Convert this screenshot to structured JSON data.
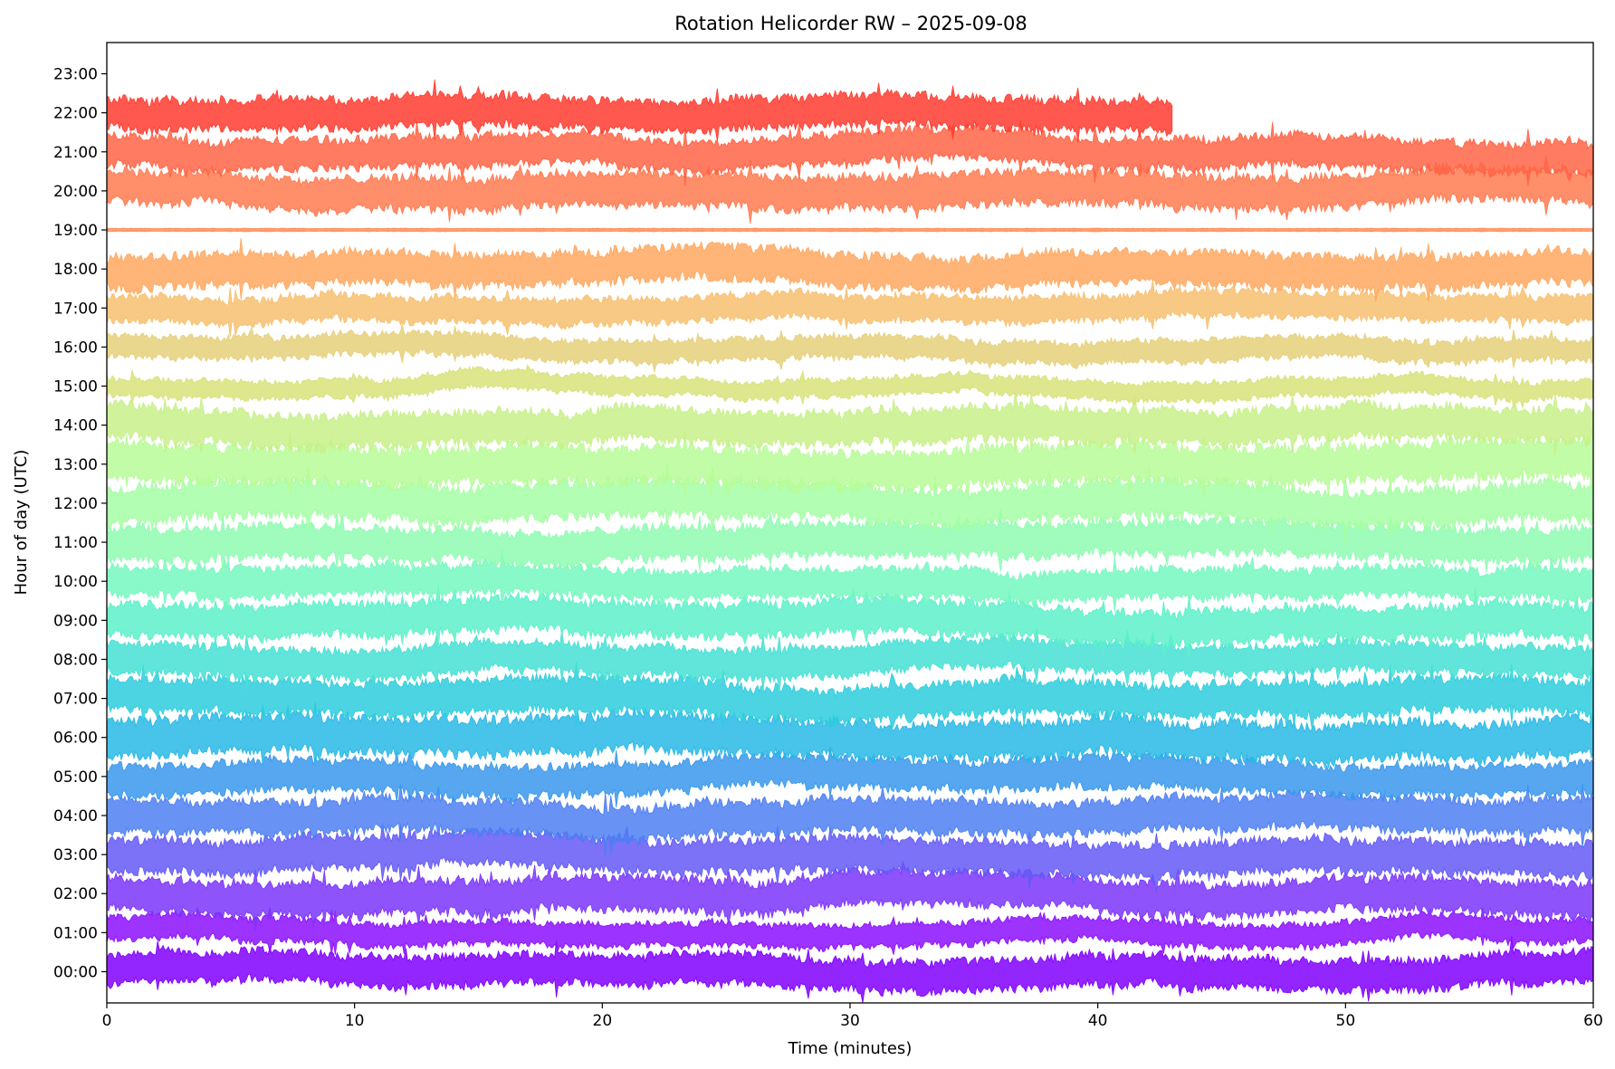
{
  "chart_data": {
    "type": "line",
    "title": "Rotation Helicorder RW – 2025-09-08",
    "xlabel": "Time (minutes)",
    "ylabel": "Hour of day (UTC)",
    "xlim": [
      0,
      60
    ],
    "ylim": [
      -0.8,
      23.8
    ],
    "x_ticks": [
      0,
      10,
      20,
      30,
      40,
      50,
      60
    ],
    "x_tick_labels": [
      "0",
      "10",
      "20",
      "30",
      "40",
      "50",
      "60"
    ],
    "y_ticks": [
      0,
      1,
      2,
      3,
      4,
      5,
      6,
      7,
      8,
      9,
      10,
      11,
      12,
      13,
      14,
      15,
      16,
      17,
      18,
      19,
      20,
      21,
      22,
      23
    ],
    "y_tick_labels": [
      "00:00",
      "01:00",
      "02:00",
      "03:00",
      "04:00",
      "05:00",
      "06:00",
      "07:00",
      "08:00",
      "09:00",
      "10:00",
      "11:00",
      "12:00",
      "13:00",
      "14:00",
      "15:00",
      "16:00",
      "17:00",
      "18:00",
      "19:00",
      "20:00",
      "21:00",
      "22:00",
      "23:00"
    ],
    "grid": false,
    "colormap": "rainbow",
    "series": [
      {
        "hour": 0,
        "color": "#8000ff",
        "amplitude": 0.42
      },
      {
        "hour": 1,
        "color": "#8b0ffe",
        "amplitude": 0.32
      },
      {
        "hour": 2,
        "color": "#7b35fb",
        "amplitude": 0.45
      },
      {
        "hour": 3,
        "color": "#6459f7",
        "amplitude": 0.45
      },
      {
        "hour": 4,
        "color": "#4d7ff2",
        "amplitude": 0.45
      },
      {
        "hour": 5,
        "color": "#3898ec",
        "amplitude": 0.42
      },
      {
        "hour": 6,
        "color": "#28b8e5",
        "amplitude": 0.5
      },
      {
        "hour": 7,
        "color": "#2ecddd",
        "amplitude": 0.45
      },
      {
        "hour": 8,
        "color": "#45e0d4",
        "amplitude": 0.4
      },
      {
        "hour": 9,
        "color": "#5df0c9",
        "amplitude": 0.45
      },
      {
        "hour": 10,
        "color": "#76f8bf",
        "amplitude": 0.4
      },
      {
        "hour": 11,
        "color": "#8efcb2",
        "amplitude": 0.45
      },
      {
        "hour": 12,
        "color": "#a4fea5",
        "amplitude": 0.5
      },
      {
        "hour": 13,
        "color": "#b8fb98",
        "amplitude": 0.5
      },
      {
        "hour": 14,
        "color": "#c8f08a",
        "amplitude": 0.45
      },
      {
        "hour": 15,
        "color": "#d8e27a",
        "amplitude": 0.25
      },
      {
        "hour": 16,
        "color": "#e6d07a",
        "amplitude": 0.3
      },
      {
        "hour": 17,
        "color": "#f7c070",
        "amplitude": 0.35
      },
      {
        "hour": 18,
        "color": "#ffa860",
        "amplitude": 0.45
      },
      {
        "hour": 19,
        "color": "#ff8d55",
        "amplitude": 0.04
      },
      {
        "hour": 20,
        "color": "#ff7a50",
        "amplitude": 0.45
      },
      {
        "hour": 21,
        "color": "#ff6445",
        "amplitude": 0.42
      },
      {
        "hour": 22,
        "color": "#ff3c30",
        "amplitude": 0.42,
        "end_minute": 43
      }
    ]
  }
}
